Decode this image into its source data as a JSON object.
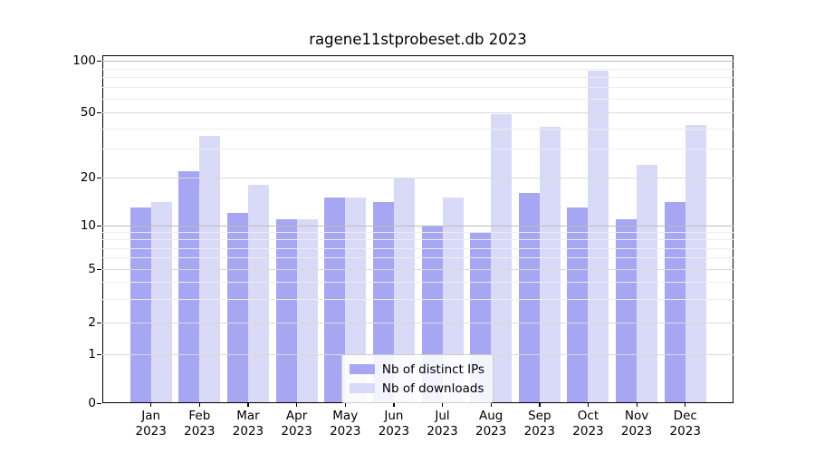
{
  "chart_data": {
    "type": "bar",
    "title": "ragene11stprobeset.db 2023",
    "categories": [
      {
        "line1": "Jan",
        "line2": "2023"
      },
      {
        "line1": "Feb",
        "line2": "2023"
      },
      {
        "line1": "Mar",
        "line2": "2023"
      },
      {
        "line1": "Apr",
        "line2": "2023"
      },
      {
        "line1": "May",
        "line2": "2023"
      },
      {
        "line1": "Jun",
        "line2": "2023"
      },
      {
        "line1": "Jul",
        "line2": "2023"
      },
      {
        "line1": "Aug",
        "line2": "2023"
      },
      {
        "line1": "Sep",
        "line2": "2023"
      },
      {
        "line1": "Oct",
        "line2": "2023"
      },
      {
        "line1": "Nov",
        "line2": "2023"
      },
      {
        "line1": "Dec",
        "line2": "2023"
      }
    ],
    "series": [
      {
        "name": "Nb of distinct IPs",
        "color": "#a6a6f2",
        "values": [
          13,
          22,
          12,
          11,
          15,
          14,
          10,
          9,
          16,
          13,
          11,
          14
        ]
      },
      {
        "name": "Nb of downloads",
        "color": "#d9d9f8",
        "values": [
          14,
          36,
          18,
          11,
          15,
          20,
          15,
          49,
          41,
          88,
          24,
          42
        ]
      }
    ],
    "yticks": [
      0,
      1,
      2,
      5,
      10,
      20,
      50,
      100
    ],
    "ylim": [
      0,
      105
    ],
    "yscale": "log-like (compressed linear below 10, log above)",
    "grid": true,
    "legend_position": "lower center"
  }
}
